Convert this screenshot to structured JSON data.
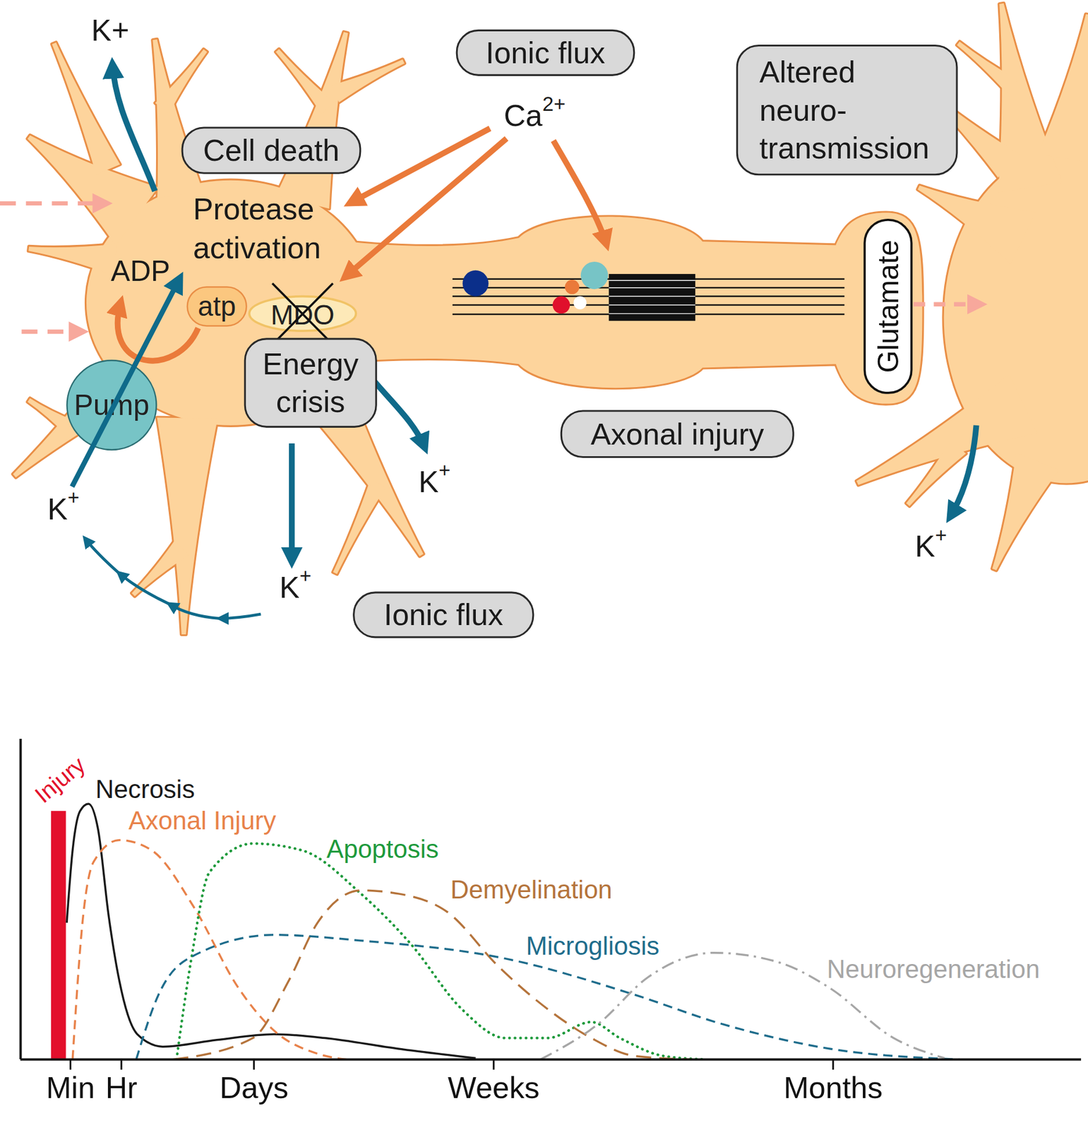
{
  "diagram": {
    "boxes": [
      {
        "lines": [
          "Ionic flux"
        ]
      },
      {
        "lines": [
          "Cell death"
        ]
      },
      {
        "lines": [
          "Altered",
          "neuro-",
          "transmission"
        ]
      },
      {
        "lines": [
          "Energy",
          "crisis"
        ]
      },
      {
        "lines": [
          "Axonal injury"
        ]
      },
      {
        "lines": [
          "Ionic flux"
        ]
      }
    ],
    "labels": {
      "process": [
        "Protease",
        "activation"
      ],
      "adp": "ADP",
      "atp": "atp",
      "organelle": "MDO",
      "pump": "Pump",
      "transmitter": "Glutamate"
    },
    "ions": {
      "calcium": {
        "base": "Ca",
        "sup": "2+"
      },
      "potassium": [
        {
          "base": "K+"
        },
        {
          "base": "K",
          "sup": "+"
        },
        {
          "base": "K",
          "sup": "+"
        },
        {
          "base": "K",
          "sup": "+"
        },
        {
          "base": "K",
          "sup": "+"
        }
      ]
    }
  },
  "chart_data": {
    "type": "line",
    "xlim": [
      0,
      100
    ],
    "ylim": [
      0,
      100
    ],
    "xticks": [
      {
        "value": 4.7,
        "label": "Min"
      },
      {
        "value": 9.5,
        "label": "Hr"
      },
      {
        "value": 22.0,
        "label": "Days"
      },
      {
        "value": 44.6,
        "label": "Weeks"
      },
      {
        "value": 76.6,
        "label": "Months"
      }
    ],
    "yticks": [],
    "tick_labels": "x",
    "series": [
      {
        "name": "Injury",
        "type": "area",
        "color": "#e3102c",
        "x": [
          2.9,
          4.3
        ],
        "values": [
          77.5,
          77.5
        ]
      },
      {
        "name": "Necrosis",
        "color": "#1a1a1a",
        "line_style": "solid",
        "x": [
          4.35,
          4.9,
          5.6,
          6.4,
          7.3,
          8.3,
          9.3,
          11.0,
          13.4,
          18.5,
          23.9,
          28.7,
          35.5,
          42.9
        ],
        "values": [
          42.7,
          65.2,
          77.5,
          79.8,
          71.9,
          44.9,
          24.7,
          7.9,
          4.0,
          6.1,
          7.9,
          6.7,
          3.4,
          0.4
        ]
      },
      {
        "name": "Axonal Injury",
        "color": "#e8824a",
        "line_style": "dashed",
        "x": [
          4.9,
          5.9,
          6.9,
          9.3,
          12.4,
          16.4,
          20.5,
          23.9,
          28.0,
          30.7
        ],
        "values": [
          0,
          44.9,
          61.8,
          68.5,
          65.2,
          47.2,
          22.5,
          9.0,
          1.8,
          0
        ]
      },
      {
        "name": "Apoptosis",
        "color": "#1e9a3c",
        "line_style": "dotted",
        "x": [
          14.7,
          16.1,
          17.8,
          21.9,
          26.6,
          32.1,
          36.8,
          41.6,
          45.7,
          49.7,
          53.8,
          56.5,
          60.6,
          64.7
        ],
        "values": [
          0,
          31.5,
          58.4,
          67.4,
          65.2,
          51.7,
          36.0,
          15.7,
          6.7,
          6.7,
          11.7,
          6.7,
          1.1,
          0
        ]
      },
      {
        "name": "Demyelination",
        "color": "#b5743c",
        "line_style": "longdash",
        "x": [
          14.4,
          21.9,
          25.3,
          28.0,
          32.1,
          35.7,
          40.2,
          45.0,
          49.7,
          53.8,
          57.9,
          63.3
        ],
        "values": [
          0,
          6.7,
          24.7,
          42.7,
          52.8,
          51.7,
          46.1,
          29.2,
          15.7,
          6.7,
          1.1,
          0
        ]
      },
      {
        "name": "Microgliosis",
        "color": "#1f6d8c",
        "line_style": "dashed",
        "x": [
          10.9,
          13.0,
          15.8,
          23.9,
          32.1,
          45.7,
          57.9,
          66.0,
          76.2,
          88.5
        ],
        "values": [
          0,
          20.2,
          31.5,
          38.9,
          37.1,
          31.5,
          20.2,
          11.2,
          3.4,
          0
        ]
      },
      {
        "name": "Neuroregeneration",
        "color": "#a6a6a6",
        "line_style": "dashdot",
        "x": [
          49.0,
          54.5,
          59.2,
          65.4,
          71.5,
          76.2,
          82.3,
          87.1
        ],
        "values": [
          0,
          11.2,
          25.8,
          33.3,
          30.3,
          22.5,
          6.7,
          0.4
        ]
      }
    ]
  }
}
